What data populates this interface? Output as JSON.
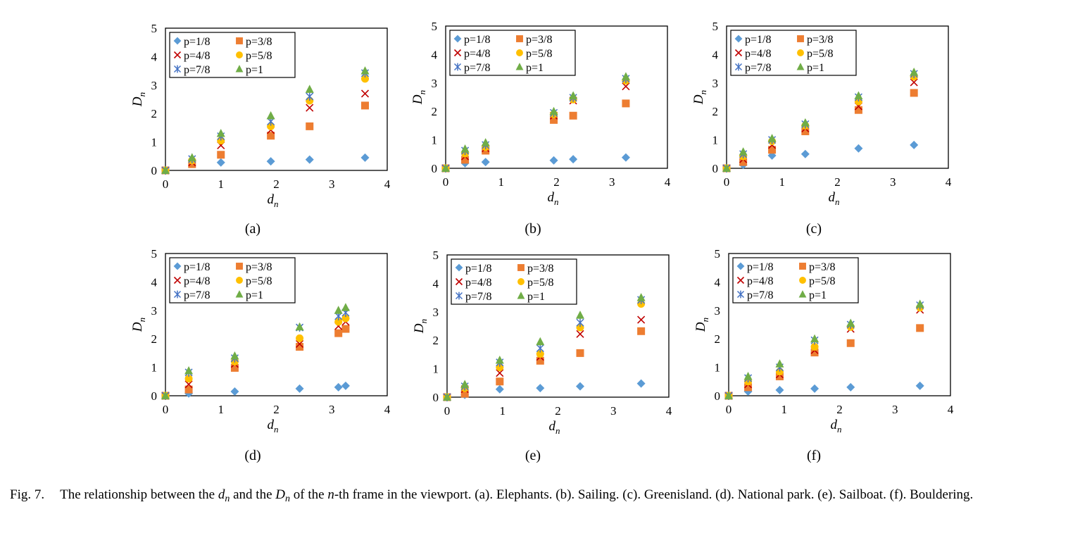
{
  "legend_entries": [
    {
      "label": "p=1/8",
      "marker": "diamond",
      "color": "#5B9BD5"
    },
    {
      "label": "p=3/8",
      "marker": "square",
      "color": "#ED7D31"
    },
    {
      "label": "p=4/8",
      "marker": "x",
      "color": "#C00000"
    },
    {
      "label": "p=5/8",
      "marker": "circle",
      "color": "#FFC000"
    },
    {
      "label": "p=7/8",
      "marker": "star",
      "color": "#4472C4"
    },
    {
      "label": "p=1",
      "marker": "triangle",
      "color": "#70AD47"
    }
  ],
  "caption": {
    "fig_no": "Fig. 7.",
    "t1": "The relationship between the ",
    "dn": "d",
    "dn_sub": "n",
    "t2": " and the ",
    "Dn": "D",
    "Dn_sub": "n",
    "t3": " of the ",
    "n": "n",
    "t4": "-th frame in the viewport. (a). Elephants. (b). Sailing. (c). Greenisland. (d). National park. (e). Sailboat. (f). Bouldering."
  },
  "chart_data": [
    {
      "type": "scatter",
      "label": "(a)",
      "xlabel": "d",
      "xlabel_sub": "n",
      "ylabel": "D",
      "ylabel_sub": "n",
      "xlim": [
        0,
        4
      ],
      "ylim": [
        0,
        5
      ],
      "xticks": [
        "0",
        "1",
        "2",
        "3",
        "4"
      ],
      "yticks": [
        "0",
        "1",
        "2",
        "3",
        "4",
        "5"
      ],
      "x": [
        0,
        0.48,
        1.0,
        1.9,
        2.6,
        3.6
      ],
      "series": [
        {
          "name": "p=1/8",
          "values": [
            0,
            0.35,
            0.28,
            0.32,
            0.38,
            0.45
          ]
        },
        {
          "name": "p=3/8",
          "values": [
            0,
            0.22,
            0.55,
            1.22,
            1.55,
            2.28
          ]
        },
        {
          "name": "p=4/8",
          "values": [
            0,
            0.28,
            0.88,
            1.42,
            2.2,
            2.7
          ]
        },
        {
          "name": "p=5/8",
          "values": [
            0,
            0.35,
            1.05,
            1.55,
            2.45,
            3.22
          ]
        },
        {
          "name": "p=7/8",
          "values": [
            0,
            0.4,
            1.2,
            1.72,
            2.6,
            3.42
          ]
        },
        {
          "name": "p=1",
          "values": [
            0,
            0.45,
            1.3,
            1.92,
            2.85,
            3.5
          ]
        }
      ]
    },
    {
      "type": "scatter",
      "label": "(b)",
      "xlabel": "d",
      "xlabel_sub": "n",
      "ylabel": "D",
      "ylabel_sub": "n",
      "xlim": [
        0,
        4
      ],
      "ylim": [
        0,
        5
      ],
      "xticks": [
        "0",
        "1",
        "2",
        "3",
        "4"
      ],
      "yticks": [
        "0",
        "1",
        "2",
        "3",
        "4",
        "5"
      ],
      "x": [
        0,
        0.35,
        0.72,
        1.95,
        2.3,
        3.25
      ],
      "series": [
        {
          "name": "p=1/8",
          "values": [
            0,
            0.18,
            0.22,
            0.28,
            0.32,
            0.38
          ]
        },
        {
          "name": "p=3/8",
          "values": [
            0,
            0.3,
            0.62,
            1.7,
            1.85,
            2.28
          ]
        },
        {
          "name": "p=4/8",
          "values": [
            0,
            0.42,
            0.7,
            1.85,
            2.38,
            2.88
          ]
        },
        {
          "name": "p=5/8",
          "values": [
            0,
            0.52,
            0.75,
            1.9,
            2.42,
            3.08
          ]
        },
        {
          "name": "p=7/8",
          "values": [
            0,
            0.62,
            0.82,
            1.95,
            2.48,
            3.15
          ]
        },
        {
          "name": "p=1",
          "values": [
            0,
            0.68,
            0.9,
            2.0,
            2.55,
            3.22
          ]
        }
      ]
    },
    {
      "type": "scatter",
      "label": "(c)",
      "xlabel": "d",
      "xlabel_sub": "n",
      "ylabel": "D",
      "ylabel_sub": "n",
      "xlim": [
        0,
        4
      ],
      "ylim": [
        0,
        5
      ],
      "xticks": [
        "0",
        "1",
        "2",
        "3",
        "4"
      ],
      "yticks": [
        "0",
        "1",
        "2",
        "3",
        "4",
        "5"
      ],
      "x": [
        0,
        0.3,
        0.82,
        1.42,
        2.38,
        3.38
      ],
      "series": [
        {
          "name": "p=1/8",
          "values": [
            0,
            0.12,
            0.45,
            0.5,
            0.7,
            0.82
          ]
        },
        {
          "name": "p=3/8",
          "values": [
            0,
            0.22,
            0.65,
            1.3,
            2.05,
            2.65
          ]
        },
        {
          "name": "p=4/8",
          "values": [
            0,
            0.32,
            0.82,
            1.4,
            2.18,
            3.02
          ]
        },
        {
          "name": "p=5/8",
          "values": [
            0,
            0.42,
            0.95,
            1.5,
            2.35,
            3.22
          ]
        },
        {
          "name": "p=7/8",
          "values": [
            0,
            0.5,
            1.0,
            1.55,
            2.5,
            3.32
          ]
        },
        {
          "name": "p=1",
          "values": [
            0,
            0.58,
            1.05,
            1.6,
            2.55,
            3.38
          ]
        }
      ]
    },
    {
      "type": "scatter",
      "label": "(d)",
      "xlabel": "d",
      "xlabel_sub": "n",
      "ylabel": "D",
      "ylabel_sub": "n",
      "xlim": [
        0,
        4
      ],
      "ylim": [
        0,
        5
      ],
      "xticks": [
        "0",
        "1",
        "2",
        "3",
        "4"
      ],
      "yticks": [
        "0",
        "1",
        "2",
        "3",
        "4",
        "5"
      ],
      "x": [
        0,
        0.42,
        1.25,
        2.42,
        3.12,
        3.25
      ],
      "series": [
        {
          "name": "p=1/8",
          "values": [
            0,
            0.08,
            0.15,
            0.25,
            0.3,
            0.35
          ]
        },
        {
          "name": "p=3/8",
          "values": [
            0,
            0.22,
            0.98,
            1.72,
            2.2,
            2.35
          ]
        },
        {
          "name": "p=4/8",
          "values": [
            0,
            0.4,
            1.12,
            1.82,
            2.45,
            2.6
          ]
        },
        {
          "name": "p=5/8",
          "values": [
            0,
            0.6,
            1.2,
            2.02,
            2.6,
            2.72
          ]
        },
        {
          "name": "p=7/8",
          "values": [
            0,
            0.82,
            1.32,
            2.4,
            2.8,
            2.92
          ]
        },
        {
          "name": "p=1",
          "values": [
            0,
            0.88,
            1.4,
            2.42,
            3.0,
            3.1
          ]
        }
      ]
    },
    {
      "type": "scatter",
      "label": "(e)",
      "xlabel": "d",
      "xlabel_sub": "n",
      "ylabel": "D",
      "ylabel_sub": "n",
      "xlim": [
        0,
        4
      ],
      "ylim": [
        0,
        5
      ],
      "xticks": [
        "0",
        "1",
        "2",
        "3",
        "4"
      ],
      "yticks": [
        "0",
        "1",
        "2",
        "3",
        "4",
        "5"
      ],
      "x": [
        0,
        0.32,
        0.95,
        1.68,
        2.4,
        3.5
      ],
      "series": [
        {
          "name": "p=1/8",
          "values": [
            0,
            0.08,
            0.28,
            0.32,
            0.38,
            0.48
          ]
        },
        {
          "name": "p=3/8",
          "values": [
            0,
            0.12,
            0.55,
            1.28,
            1.55,
            2.32
          ]
        },
        {
          "name": "p=4/8",
          "values": [
            0,
            0.28,
            0.85,
            1.42,
            2.22,
            2.72
          ]
        },
        {
          "name": "p=5/8",
          "values": [
            0,
            0.32,
            1.05,
            1.52,
            2.45,
            3.28
          ]
        },
        {
          "name": "p=7/8",
          "values": [
            0,
            0.38,
            1.22,
            1.72,
            2.62,
            3.42
          ]
        },
        {
          "name": "p=1",
          "values": [
            0,
            0.45,
            1.3,
            1.95,
            2.88,
            3.5
          ]
        }
      ]
    },
    {
      "type": "scatter",
      "label": "(f)",
      "xlabel": "d",
      "xlabel_sub": "n",
      "ylabel": "D",
      "ylabel_sub": "n",
      "xlim": [
        0,
        4
      ],
      "ylim": [
        0,
        5
      ],
      "xticks": [
        "0",
        "1",
        "2",
        "3",
        "4"
      ],
      "yticks": [
        "0",
        "1",
        "2",
        "3",
        "4",
        "5"
      ],
      "x": [
        0,
        0.35,
        0.92,
        1.55,
        2.2,
        3.45
      ],
      "series": [
        {
          "name": "p=1/8",
          "values": [
            0,
            0.15,
            0.2,
            0.25,
            0.3,
            0.35
          ]
        },
        {
          "name": "p=3/8",
          "values": [
            0,
            0.3,
            0.68,
            1.52,
            1.85,
            2.38
          ]
        },
        {
          "name": "p=4/8",
          "values": [
            0,
            0.4,
            0.75,
            1.6,
            2.35,
            3.02
          ]
        },
        {
          "name": "p=5/8",
          "values": [
            0,
            0.5,
            0.85,
            1.72,
            2.42,
            3.1
          ]
        },
        {
          "name": "p=7/8",
          "values": [
            0,
            0.62,
            1.0,
            1.95,
            2.5,
            3.18
          ]
        },
        {
          "name": "p=1",
          "values": [
            0,
            0.68,
            1.12,
            2.0,
            2.55,
            3.22
          ]
        }
      ]
    }
  ]
}
